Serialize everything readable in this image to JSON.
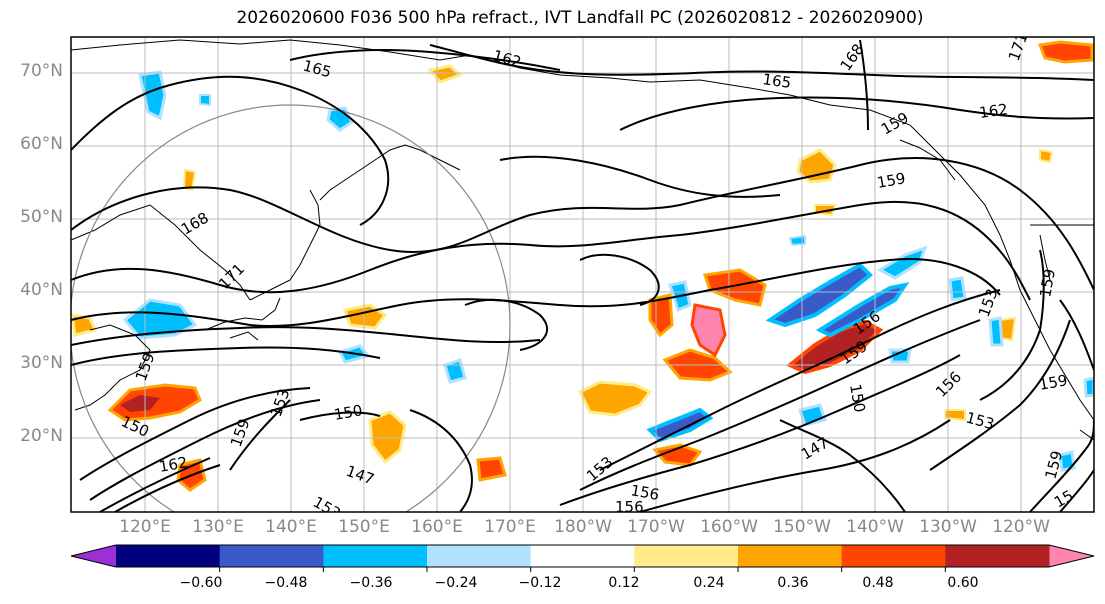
{
  "title": "2026020600 F036 500 hPa refract., IVT Landfall PC (2026020812 - 2026020900)",
  "lat_labels": [
    "70°N",
    "60°N",
    "50°N",
    "40°N",
    "30°N",
    "20°N"
  ],
  "lon_labels": [
    "120°E",
    "130°E",
    "140°E",
    "150°E",
    "160°E",
    "170°E",
    "180°W",
    "170°W",
    "160°W",
    "150°W",
    "140°W",
    "130°W",
    "120°W"
  ],
  "colorbar": {
    "colors": [
      "#9b30d9",
      "#000080",
      "#3a5ac8",
      "#00bfff",
      "#b0e2ff",
      "#ffffff",
      "#ffeb8a",
      "#ffa500",
      "#ff4500",
      "#b22222",
      "#ff85b0"
    ],
    "ticks": [
      "−0.60",
      "−0.48",
      "−0.36",
      "−0.24",
      "−0.12",
      "0.12",
      "0.24",
      "0.36",
      "0.48",
      "0.60"
    ]
  },
  "contour_labels": [
    "162",
    "165",
    "168",
    "165",
    "162",
    "171",
    "159",
    "159",
    "168",
    "171",
    "159",
    "156",
    "159",
    "153",
    "150",
    "162",
    "147",
    "153",
    "150",
    "147",
    "159",
    "156",
    "153",
    "156",
    "159",
    "153",
    "159",
    "150",
    "153",
    "156",
    "159",
    "15"
  ]
}
